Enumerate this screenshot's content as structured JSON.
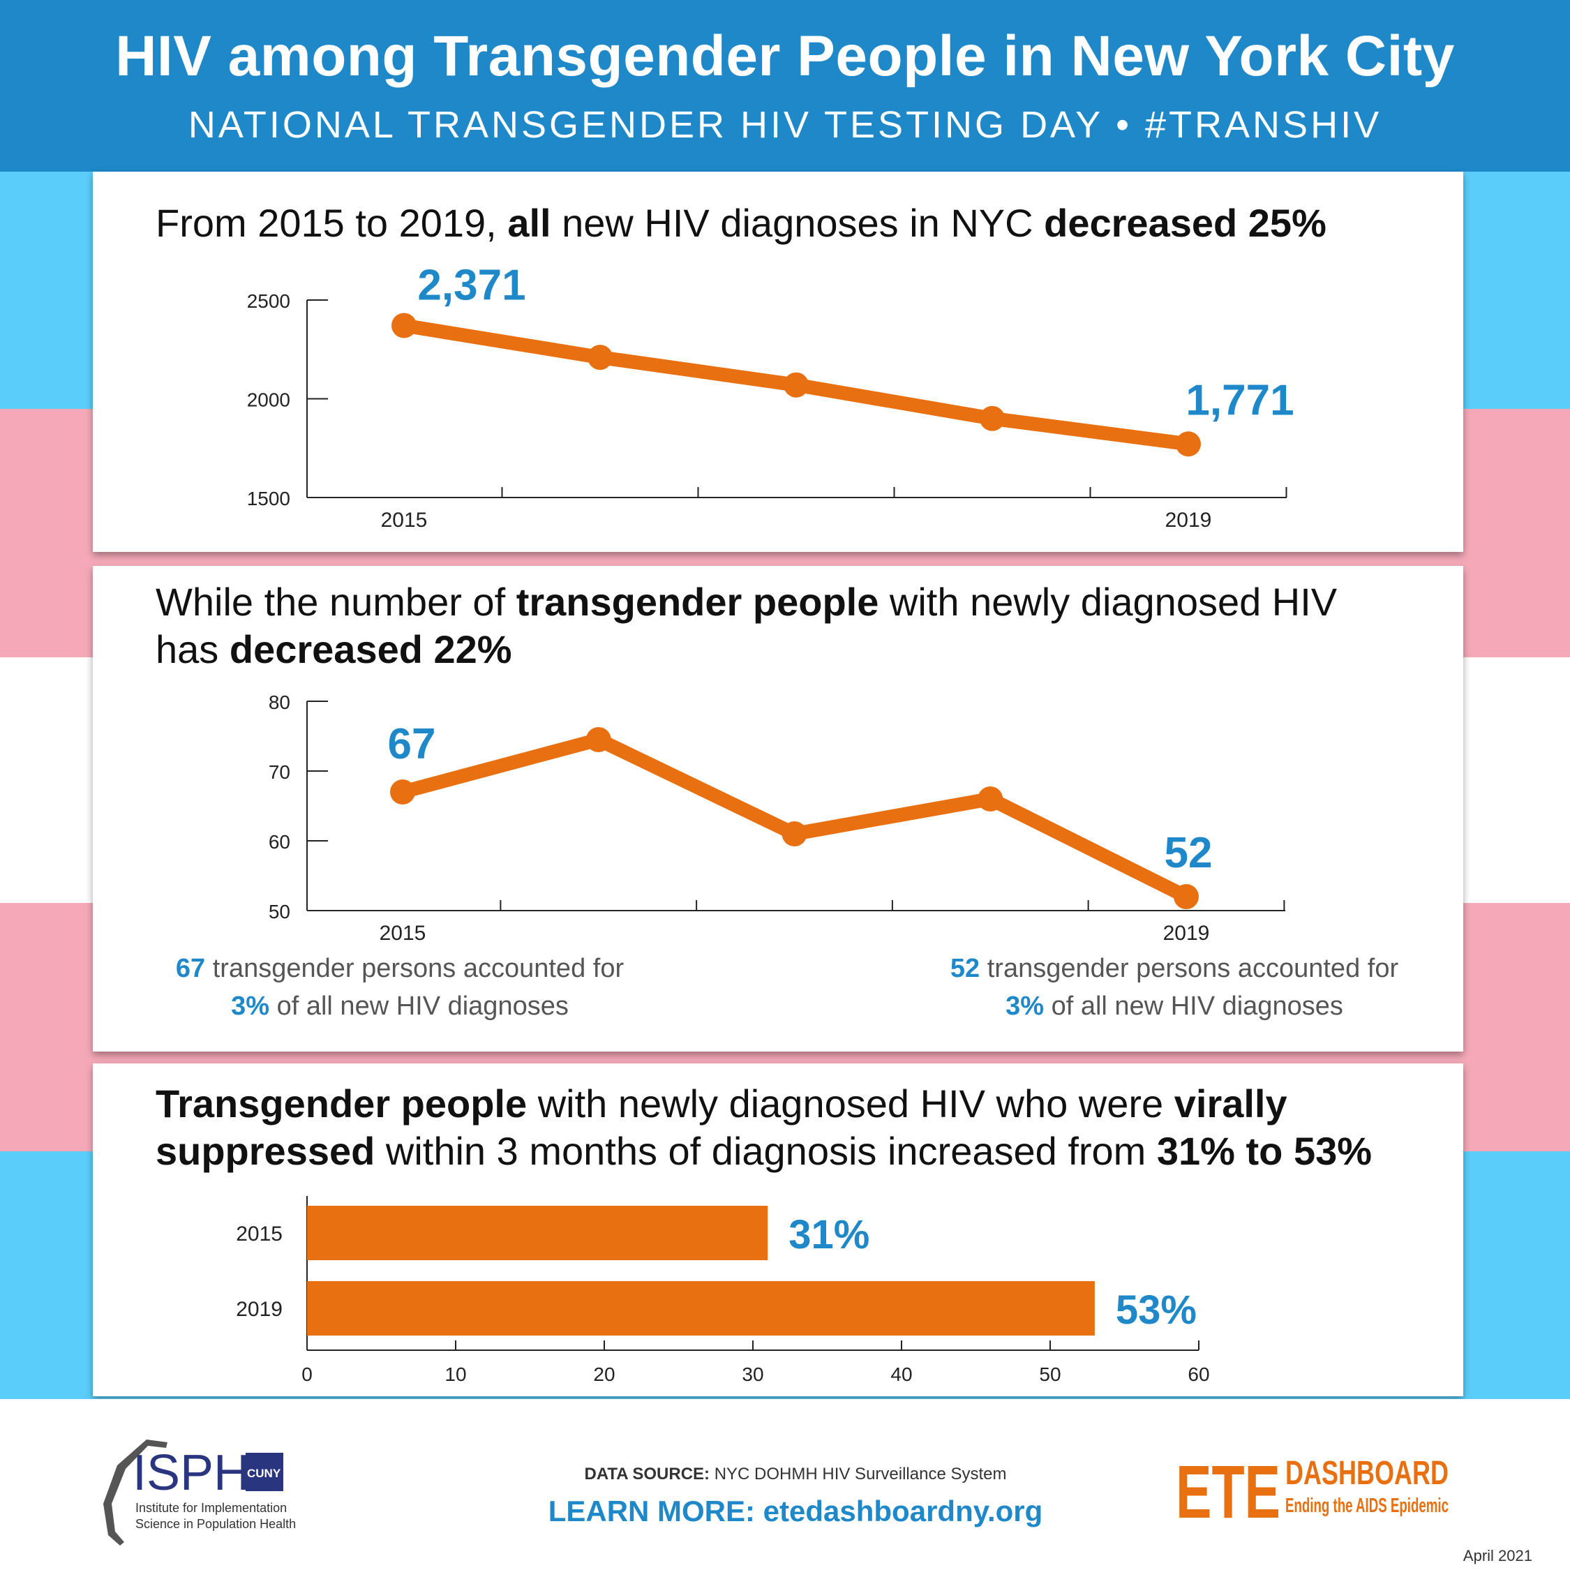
{
  "header": {
    "title": "HIV among Transgender People in New York City",
    "subtitle": "NATIONAL TRANSGENDER HIV TESTING DAY • #TRANSHIV"
  },
  "colors": {
    "header_blue": "#1e88c8",
    "flag_blue": "#5bcdfa",
    "flag_pink": "#f5a9b8",
    "flag_white": "#ffffff",
    "series_orange": "#e87011",
    "label_blue": "#1e88c8"
  },
  "panel1": {
    "headline": {
      "p1": "From 2015 to 2019, ",
      "b1": "all",
      "p2": " new HIV diagnoses in NYC ",
      "b2": "decreased 25%"
    }
  },
  "panel2": {
    "headline": {
      "p1": "While the number of ",
      "b1": "transgender people",
      "p2": " with newly diagnosed HIV has ",
      "b2": "decreased 22%"
    },
    "note_left": {
      "num": "67",
      "line1": " transgender persons accounted for",
      "pct": "3%",
      "line2": " of all new HIV diagnoses"
    },
    "note_right": {
      "num": "52",
      "line1": " transgender persons accounted for",
      "pct": "3%",
      "line2": " of all new HIV diagnoses"
    }
  },
  "panel3": {
    "headline": {
      "b1": "Transgender people",
      "p1": " with newly diagnosed HIV who were ",
      "b2": "virally suppressed",
      "p2": " within 3 months of diagnosis increased from ",
      "b3": "31% to 53%"
    }
  },
  "chart_data": [
    {
      "type": "line",
      "x": [
        2015,
        2016,
        2017,
        2018,
        2019
      ],
      "series": [
        {
          "values": [
            2371,
            2210,
            2070,
            1900,
            1771
          ]
        }
      ],
      "ylim": [
        1500,
        2500
      ],
      "y_ticks": [
        "1500",
        "2000",
        "2500"
      ],
      "x_tick_labels": [
        "2015",
        "",
        "",
        "",
        "2019"
      ],
      "data_labels": [
        "2,371",
        "",
        "",
        "",
        "1,771"
      ],
      "grid": false
    },
    {
      "type": "line",
      "x": [
        2015,
        2016,
        2017,
        2018,
        2019
      ],
      "series": [
        {
          "values": [
            67,
            74.5,
            61,
            66,
            52
          ]
        }
      ],
      "ylim": [
        50,
        80
      ],
      "y_ticks": [
        "50",
        "60",
        "70",
        "80"
      ],
      "x_tick_labels": [
        "2015",
        "",
        "",
        "",
        "2019"
      ],
      "data_labels": [
        "67",
        "",
        "",
        "",
        "52"
      ],
      "grid": false
    },
    {
      "type": "bar",
      "orientation": "horizontal",
      "categories": [
        "2015",
        "2019"
      ],
      "values": [
        31,
        53
      ],
      "data_labels": [
        "31%",
        "53%"
      ],
      "xlim": [
        0,
        60
      ],
      "x_ticks": [
        "0",
        "10",
        "20",
        "30",
        "40",
        "50",
        "60"
      ],
      "grid": false
    }
  ],
  "footer": {
    "isph": {
      "main": "ISPH",
      "cuny": "CUNY",
      "line1": "Institute for Implementation",
      "line2": "Science in Population Health"
    },
    "source_label": "DATA SOURCE:",
    "source_text": " NYC DOHMH HIV Surveillance System",
    "learn_more": "LEARN MORE: etedashboardny.org",
    "ete": {
      "big": "ETE",
      "dashboard": "DASHBOARD",
      "tagline": "Ending the AIDS Epidemic"
    },
    "date": "April 2021"
  }
}
